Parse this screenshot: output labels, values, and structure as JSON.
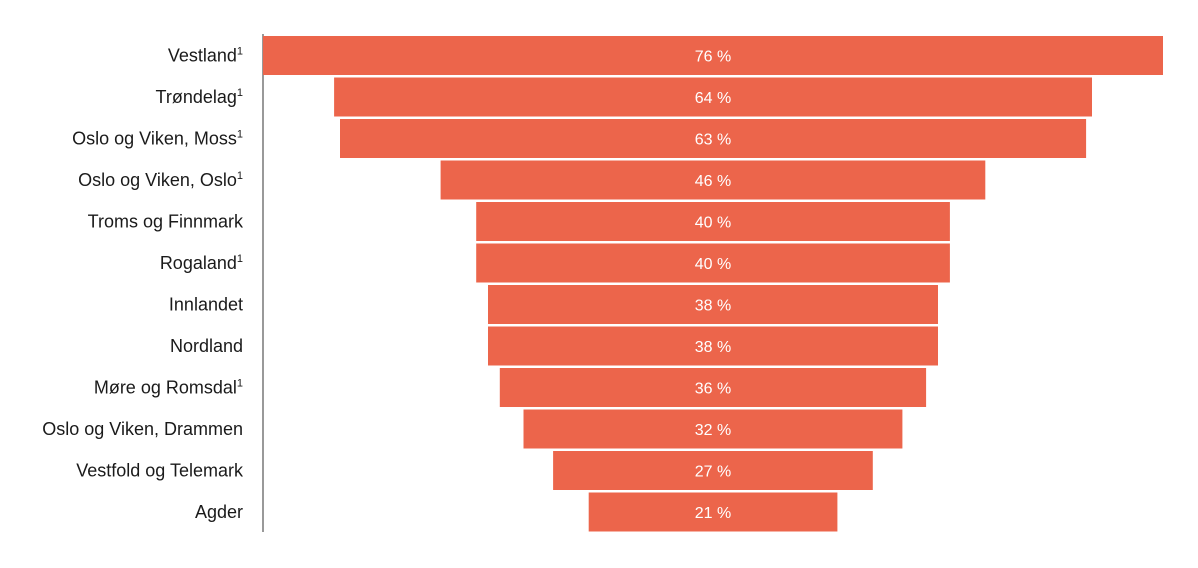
{
  "chart_data": {
    "type": "bar",
    "orientation": "horizontal",
    "style": "funnel-centered",
    "categories": [
      {
        "label": "Vestland",
        "sup": "1"
      },
      {
        "label": "Trøndelag",
        "sup": "1"
      },
      {
        "label": "Oslo og Viken, Moss",
        "sup": "1"
      },
      {
        "label": "Oslo og Viken, Oslo",
        "sup": "1"
      },
      {
        "label": "Troms og Finnmark",
        "sup": ""
      },
      {
        "label": "Rogaland",
        "sup": "1"
      },
      {
        "label": "Innlandet",
        "sup": ""
      },
      {
        "label": "Nordland",
        "sup": ""
      },
      {
        "label": "Møre og Romsdal",
        "sup": "1"
      },
      {
        "label": "Oslo og Viken, Drammen",
        "sup": ""
      },
      {
        "label": "Vestfold og Telemark",
        "sup": ""
      },
      {
        "label": "Agder",
        "sup": ""
      }
    ],
    "values": [
      76,
      64,
      63,
      46,
      40,
      40,
      38,
      38,
      36,
      32,
      27,
      21
    ],
    "value_labels": [
      "76 %",
      "64 %",
      "63 %",
      "46 %",
      "40 %",
      "40 %",
      "38 %",
      "38 %",
      "36 %",
      "32 %",
      "27 %",
      "21 %"
    ],
    "unit": "%",
    "xlim": [
      0,
      76
    ],
    "legend": "none",
    "grid": false,
    "colors": {
      "bar": "#ec654b",
      "bar_label": "#ffffff",
      "axis": "#333333",
      "text": "#1a1a1a"
    }
  }
}
